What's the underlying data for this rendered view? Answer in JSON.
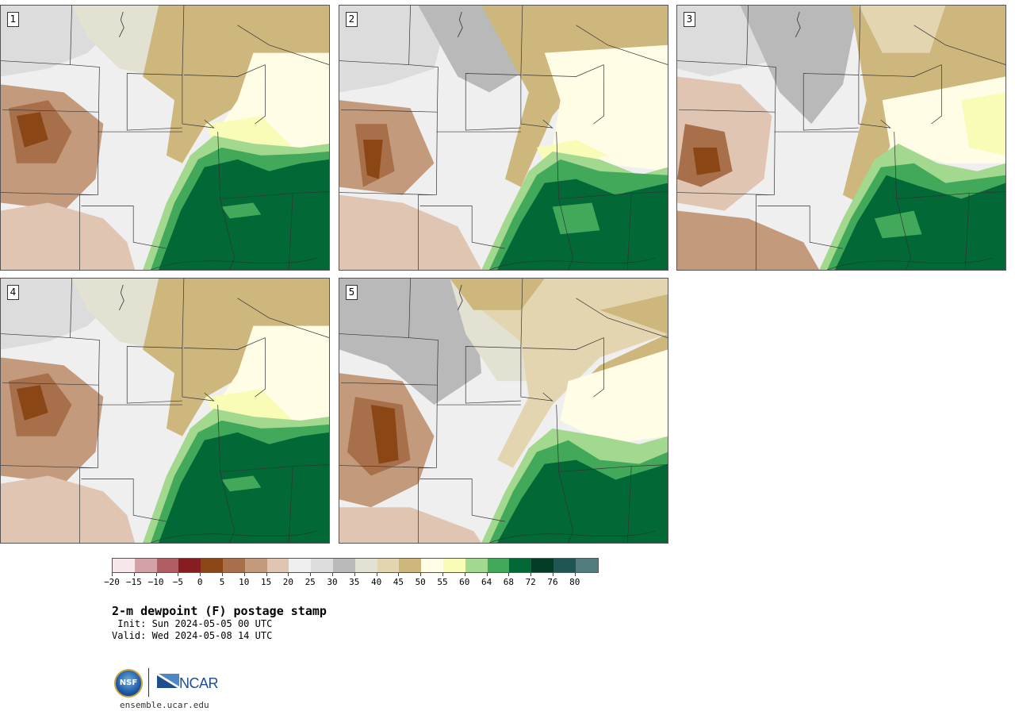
{
  "panels": [
    {
      "label": "1"
    },
    {
      "label": "2"
    },
    {
      "label": "3"
    },
    {
      "label": "4"
    },
    {
      "label": "5"
    }
  ],
  "colorbar": {
    "colors": [
      "#f6e8ea",
      "#d4a2a6",
      "#b05e64",
      "#871d22",
      "#8a4715",
      "#a8704a",
      "#c49a7c",
      "#e0c5b3",
      "#efefef",
      "#dcdcdc",
      "#b9b9b9",
      "#e2e1d2",
      "#e3d5b0",
      "#cdb77c",
      "#fffde6",
      "#f8fcb7",
      "#a3d98f",
      "#42a85a",
      "#026836",
      "#023c24",
      "#1e5654",
      "#547c7e"
    ],
    "ticks": [
      "−20",
      "−15",
      "−10",
      "−5",
      "0",
      "5",
      "10",
      "15",
      "20",
      "25",
      "30",
      "35",
      "40",
      "45",
      "50",
      "55",
      "60",
      "64",
      "68",
      "72",
      "76",
      "80"
    ]
  },
  "title": "2-m dewpoint (F) postage stamp",
  "init": " Init: Sun 2024-05-05 00 UTC",
  "valid": "Valid: Wed 2024-05-08 14 UTC",
  "logo": {
    "nsf": "NSF",
    "ncar": "NCAR"
  },
  "site": "ensemble.ucar.edu"
}
